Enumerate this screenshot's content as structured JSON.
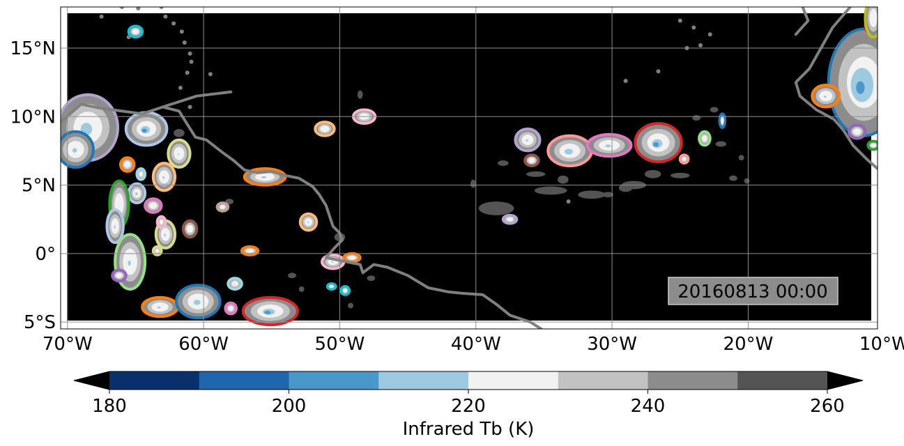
{
  "map": {
    "lon_range": [
      -70.5,
      -10.5
    ],
    "lat_range": [
      -5.5,
      18
    ],
    "lon_ticks": [
      {
        "value": -70,
        "label": "70°W"
      },
      {
        "value": -60,
        "label": "60°W"
      },
      {
        "value": -50,
        "label": "50°W"
      },
      {
        "value": -40,
        "label": "40°W"
      },
      {
        "value": -30,
        "label": "30°W"
      },
      {
        "value": -20,
        "label": "20°W"
      },
      {
        "value": -10,
        "label": "10°W"
      }
    ],
    "lat_ticks": [
      {
        "value": 15,
        "label": "15°N"
      },
      {
        "value": 10,
        "label": "10°N"
      },
      {
        "value": 5,
        "label": "5°N"
      },
      {
        "value": 0,
        "label": "0°"
      },
      {
        "value": -5,
        "label": "5°S"
      }
    ],
    "background_color": "#000000",
    "coastline_color": "#808080",
    "grid": true,
    "timestamp": "20160813 00:00",
    "coastlines": [
      {
        "name": "south-america",
        "points": [
          [
            -70.5,
            9.6
          ],
          [
            -69,
            10.9
          ],
          [
            -67.5,
            10.6
          ],
          [
            -66,
            10.4
          ],
          [
            -64.5,
            10.2
          ],
          [
            -63,
            10.7
          ],
          [
            -61.8,
            10.4
          ],
          [
            -61.3,
            9.6
          ],
          [
            -60.6,
            8.5
          ],
          [
            -59.8,
            8.3
          ],
          [
            -58.5,
            7.3
          ],
          [
            -57.8,
            6.8
          ],
          [
            -57,
            6.1
          ],
          [
            -56,
            5.9
          ],
          [
            -55,
            6
          ],
          [
            -54,
            5.7
          ],
          [
            -53,
            5.5
          ],
          [
            -52,
            4.9
          ],
          [
            -51.5,
            4.3
          ],
          [
            -51,
            3.5
          ],
          [
            -50.5,
            2
          ],
          [
            -50,
            1.5
          ],
          [
            -49.8,
            1
          ],
          [
            -50.4,
            0.4
          ],
          [
            -51,
            -0.3
          ],
          [
            -49.5,
            -0.6
          ],
          [
            -48.5,
            -0.8
          ],
          [
            -48.3,
            -1.4
          ],
          [
            -47.5,
            -0.8
          ],
          [
            -46.5,
            -1
          ],
          [
            -45,
            -1.6
          ],
          [
            -43.5,
            -2.5
          ],
          [
            -42,
            -2.8
          ],
          [
            -41,
            -2.9
          ],
          [
            -39.5,
            -3
          ],
          [
            -38.5,
            -3.7
          ],
          [
            -37.5,
            -4.5
          ],
          [
            -36,
            -5
          ],
          [
            -35.2,
            -5.5
          ]
        ]
      },
      {
        "name": "guiana-inland",
        "points": [
          [
            -63,
            10.7
          ],
          [
            -60.5,
            11.5
          ],
          [
            -58,
            11.8
          ]
        ]
      },
      {
        "name": "africa",
        "points": [
          [
            -12.5,
            18
          ],
          [
            -13.8,
            16.5
          ],
          [
            -15.5,
            13.5
          ],
          [
            -16.5,
            12.5
          ],
          [
            -16.2,
            11.5
          ],
          [
            -15,
            10.5
          ],
          [
            -13.7,
            9.8
          ],
          [
            -13,
            9
          ],
          [
            -12.3,
            7.9
          ],
          [
            -11.3,
            6.9
          ],
          [
            -10.5,
            6.2
          ]
        ]
      },
      {
        "name": "africa-north",
        "points": [
          [
            -16,
            18
          ],
          [
            -15.6,
            17
          ],
          [
            -16.5,
            16
          ]
        ]
      }
    ],
    "islands": [
      [
        -61,
        14.6
      ],
      [
        -61.4,
        15.4
      ],
      [
        -61.2,
        13.2
      ],
      [
        -61.7,
        12.1
      ],
      [
        -60.9,
        14
      ],
      [
        -61.6,
        16.2
      ],
      [
        -62.2,
        16.8
      ],
      [
        -62.8,
        17.3
      ],
      [
        -63.1,
        18
      ],
      [
        -64.8,
        17.9
      ],
      [
        -66,
        18
      ],
      [
        -67.5,
        17.3
      ],
      [
        -65.5,
        15.8
      ],
      [
        -61,
        10.7
      ],
      [
        -59.5,
        13.1
      ],
      [
        -24.5,
        15
      ],
      [
        -23.5,
        15.2
      ],
      [
        -24,
        16.5
      ],
      [
        -25,
        17
      ],
      [
        -22.8,
        16
      ],
      [
        -29,
        12.6
      ],
      [
        -26.6,
        13.3
      ],
      [
        -33.2,
        3.8
      ]
    ],
    "clouds": [
      {
        "lon": -68.5,
        "lat": 9.2,
        "rx": 2.2,
        "ry": 2.4,
        "core": 0.6,
        "edge": "#b5a3cf"
      },
      {
        "lon": -69.4,
        "lat": 7.6,
        "rx": 1.3,
        "ry": 1.3,
        "core": 0.4,
        "edge": "#1f77b4"
      },
      {
        "lon": -64.2,
        "lat": 9.1,
        "rx": 1.5,
        "ry": 1.2,
        "core": 0.7,
        "edge": "#aec7e8"
      },
      {
        "lon": -61.8,
        "lat": 7.3,
        "rx": 0.8,
        "ry": 1.0,
        "core": 0.2,
        "edge": "#dbdb8d"
      },
      {
        "lon": -62.9,
        "lat": 5.6,
        "rx": 0.8,
        "ry": 1.0,
        "core": 0.3,
        "edge": "#ffbb78"
      },
      {
        "lon": -65.6,
        "lat": 6.5,
        "rx": 0.5,
        "ry": 0.5,
        "core": 0.0,
        "edge": "#ff7f0e"
      },
      {
        "lon": -64.6,
        "lat": 5.8,
        "rx": 0.3,
        "ry": 0.4,
        "core": 0.0,
        "edge": "#9edae5"
      },
      {
        "lon": -64.9,
        "lat": 4.4,
        "rx": 0.6,
        "ry": 0.7,
        "core": 0.5,
        "edge": "#aec7e8"
      },
      {
        "lon": -66.2,
        "lat": 3.6,
        "rx": 0.7,
        "ry": 1.7,
        "core": 0.0,
        "edge": "#2ca02c"
      },
      {
        "lon": -63.7,
        "lat": 3.5,
        "rx": 0.6,
        "ry": 0.5,
        "core": 0.0,
        "edge": "#e377c2"
      },
      {
        "lon": -66.5,
        "lat": 2.0,
        "rx": 0.6,
        "ry": 1.2,
        "core": 0.3,
        "edge": "#aec7e8"
      },
      {
        "lon": -65.4,
        "lat": -0.6,
        "rx": 1.1,
        "ry": 2.0,
        "core": 0.3,
        "edge": "#98df8a"
      },
      {
        "lon": -62.8,
        "lat": 1.4,
        "rx": 0.7,
        "ry": 1.0,
        "core": 0.3,
        "edge": "#dbdb8d"
      },
      {
        "lon": -63.1,
        "lat": 2.3,
        "rx": 0.3,
        "ry": 0.4,
        "core": 0.0,
        "edge": "#f7b6d2"
      },
      {
        "lon": -61.0,
        "lat": 1.8,
        "rx": 0.5,
        "ry": 0.6,
        "core": 0.0,
        "edge": "#8c564b"
      },
      {
        "lon": -63.4,
        "lat": 0.2,
        "rx": 0.3,
        "ry": 0.3,
        "core": 0.0,
        "edge": "#dbdb8d"
      },
      {
        "lon": -58.6,
        "lat": 3.4,
        "rx": 0.4,
        "ry": 0.3,
        "core": 0.0,
        "edge": "#c49c94"
      },
      {
        "lon": -56.6,
        "lat": 0.2,
        "rx": 0.6,
        "ry": 0.3,
        "core": 0.0,
        "edge": "#ff7f0e"
      },
      {
        "lon": -66.2,
        "lat": -1.6,
        "rx": 0.5,
        "ry": 0.4,
        "core": 0.0,
        "edge": "#9467bd"
      },
      {
        "lon": -63.2,
        "lat": -3.9,
        "rx": 1.3,
        "ry": 0.7,
        "core": 0.3,
        "edge": "#ff7f0e"
      },
      {
        "lon": -60.4,
        "lat": -3.5,
        "rx": 1.6,
        "ry": 1.2,
        "core": 0.5,
        "edge": "#1f77b4"
      },
      {
        "lon": -57.7,
        "lat": -2.2,
        "rx": 0.5,
        "ry": 0.4,
        "core": 0.3,
        "edge": "#9edae5"
      },
      {
        "lon": -58.0,
        "lat": -4.0,
        "rx": 0.4,
        "ry": 0.4,
        "core": 0.0,
        "edge": "#e377c2"
      },
      {
        "lon": -55.1,
        "lat": -4.2,
        "rx": 2.0,
        "ry": 1.0,
        "core": 0.7,
        "edge": "#d62728"
      },
      {
        "lon": -55.5,
        "lat": 5.6,
        "rx": 1.5,
        "ry": 0.6,
        "core": 0.4,
        "edge": "#ff7f0e"
      },
      {
        "lon": -52.3,
        "lat": 2.3,
        "rx": 0.6,
        "ry": 0.6,
        "core": 0.3,
        "edge": "#ffbb78"
      },
      {
        "lon": -51.1,
        "lat": 9.1,
        "rx": 0.7,
        "ry": 0.5,
        "core": 0.0,
        "edge": "#ffbb78"
      },
      {
        "lon": -48.2,
        "lat": 10.0,
        "rx": 0.8,
        "ry": 0.5,
        "core": 0.0,
        "edge": "#f7b6d2"
      },
      {
        "lon": -50.5,
        "lat": -0.6,
        "rx": 0.8,
        "ry": 0.5,
        "core": 0.3,
        "edge": "#f7b6d2"
      },
      {
        "lon": -49.1,
        "lat": -0.3,
        "rx": 0.6,
        "ry": 0.3,
        "core": 0.0,
        "edge": "#ff7f0e"
      },
      {
        "lon": -49.6,
        "lat": -2.7,
        "rx": 0.3,
        "ry": 0.3,
        "core": 0.0,
        "edge": "#17becf"
      },
      {
        "lon": -50.6,
        "lat": -2.4,
        "rx": 0.3,
        "ry": 0.2,
        "core": 0.0,
        "edge": "#17becf"
      },
      {
        "lon": -65.0,
        "lat": 16.2,
        "rx": 0.5,
        "ry": 0.4,
        "core": 0.0,
        "edge": "#17becf"
      },
      {
        "lon": -36.2,
        "lat": 8.3,
        "rx": 0.9,
        "ry": 0.8,
        "core": 0.3,
        "edge": "#b5a3cf"
      },
      {
        "lon": -35.9,
        "lat": 6.8,
        "rx": 0.5,
        "ry": 0.4,
        "core": 0.0,
        "edge": "#8c564b"
      },
      {
        "lon": -33.1,
        "lat": 7.5,
        "rx": 1.6,
        "ry": 1.1,
        "core": 0.6,
        "edge": "#ff9896"
      },
      {
        "lon": -30.2,
        "lat": 7.9,
        "rx": 1.6,
        "ry": 0.8,
        "core": 0.4,
        "edge": "#e377c2"
      },
      {
        "lon": -26.6,
        "lat": 8.1,
        "rx": 1.7,
        "ry": 1.4,
        "core": 0.7,
        "edge": "#d62728"
      },
      {
        "lon": -24.7,
        "lat": 6.9,
        "rx": 0.3,
        "ry": 0.3,
        "core": 0.0,
        "edge": "#ff9896"
      },
      {
        "lon": -23.2,
        "lat": 8.4,
        "rx": 0.4,
        "ry": 0.5,
        "core": 0.0,
        "edge": "#98df8a"
      },
      {
        "lon": -21.9,
        "lat": 9.7,
        "rx": 0.2,
        "ry": 0.5,
        "core": 0.0,
        "edge": "#1f77b4"
      },
      {
        "lon": -37.5,
        "lat": 2.5,
        "rx": 0.5,
        "ry": 0.3,
        "core": 0.0,
        "edge": "#b5a3cf"
      },
      {
        "lon": -11.5,
        "lat": 12.5,
        "rx": 2.6,
        "ry": 3.9,
        "core": 1.0,
        "edge": "#1f77b4"
      },
      {
        "lon": -14.3,
        "lat": 11.5,
        "rx": 1.0,
        "ry": 0.8,
        "core": 0.3,
        "edge": "#ff7f0e"
      },
      {
        "lon": -12.0,
        "lat": 8.9,
        "rx": 0.6,
        "ry": 0.5,
        "core": 0.0,
        "edge": "#9467bd"
      },
      {
        "lon": -10.8,
        "lat": 7.9,
        "rx": 0.4,
        "ry": 0.3,
        "core": 0.0,
        "edge": "#2ca02c"
      },
      {
        "lon": -11.0,
        "lat": 16.6,
        "rx": 0.4,
        "ry": 0.5,
        "core": 0.0,
        "edge": "#d62728"
      },
      {
        "lon": -10.8,
        "lat": 17.2,
        "rx": 0.6,
        "ry": 1.4,
        "core": 0.0,
        "edge": "#bcbd22"
      }
    ],
    "stray_patches": [
      [
        -34.5,
        4.6,
        1.2,
        0.3
      ],
      [
        -31.5,
        4.3,
        1.0,
        0.3
      ],
      [
        -29.0,
        4.8,
        0.5,
        0.3
      ],
      [
        -28.4,
        5.0,
        0.9,
        0.3
      ],
      [
        -27.0,
        5.8,
        0.6,
        0.3
      ],
      [
        -25.0,
        5.7,
        0.7,
        0.2
      ],
      [
        -38.5,
        3.3,
        1.3,
        0.5
      ],
      [
        -40.2,
        5.1,
        0.2,
        0.3
      ],
      [
        -38.0,
        6.6,
        0.4,
        0.2
      ],
      [
        -35.6,
        5.8,
        0.7,
        0.2
      ],
      [
        -33.6,
        5.4,
        0.4,
        0.3
      ],
      [
        -30.3,
        4.3,
        0.4,
        0.2
      ],
      [
        -20.5,
        7.0,
        0.2,
        0.2
      ],
      [
        -21.1,
        5.5,
        0.3,
        0.2
      ],
      [
        -20.1,
        5.3,
        0.2,
        0.2
      ],
      [
        -22.0,
        8.0,
        0.4,
        0.2
      ],
      [
        -23.8,
        9.9,
        0.3,
        0.2
      ],
      [
        -22.5,
        10.5,
        0.3,
        0.2
      ],
      [
        -48.5,
        11.6,
        0.2,
        0.3
      ],
      [
        -47.7,
        -1.8,
        0.3,
        0.2
      ],
      [
        -49.2,
        -3.8,
        0.2,
        0.2
      ],
      [
        -65.5,
        1.0,
        0.3,
        0.3
      ],
      [
        -52.8,
        -2.6,
        0.2,
        0.2
      ],
      [
        -50.0,
        1.2,
        0.4,
        0.3
      ],
      [
        -53.5,
        -1.6,
        0.3,
        0.2
      ],
      [
        -61.8,
        8.8,
        0.4,
        0.3
      ],
      [
        -58.1,
        3.8,
        0.3,
        0.2
      ]
    ]
  },
  "colorbar": {
    "colors": [
      "#08306b",
      "#2066ac",
      "#4a98c9",
      "#9ecae1",
      "#f2f2f2",
      "#c2c2c2",
      "#8c8c8c",
      "#545454"
    ],
    "under_color": "#000000",
    "over_color": "#000000",
    "ticks": [
      {
        "value": 180,
        "label": "180"
      },
      {
        "value": 200,
        "label": "200"
      },
      {
        "value": 220,
        "label": "220"
      },
      {
        "value": 240,
        "label": "240"
      },
      {
        "value": 260,
        "label": "260"
      }
    ],
    "range": [
      180,
      260
    ],
    "label": "Infrared Tb (K)"
  }
}
